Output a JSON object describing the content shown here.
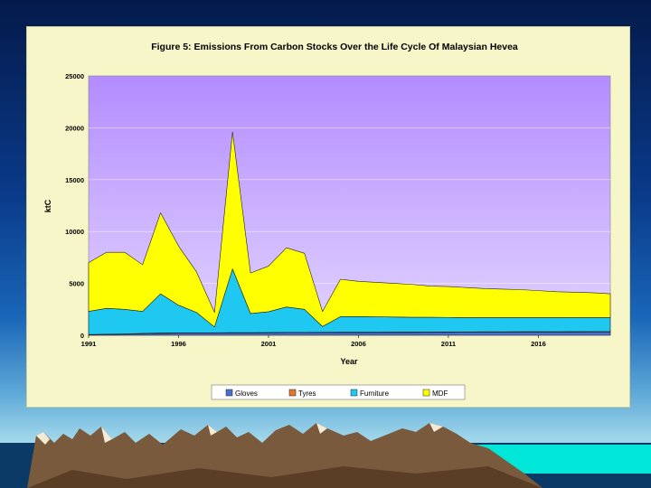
{
  "chart_data": {
    "type": "area",
    "stacked": true,
    "title": "Figure 5: Emissions From Carbon Stocks Over the Life Cycle Of Malaysian Hevea",
    "xlabel": "Year",
    "ylabel": "ktC",
    "x": [
      1991,
      1992,
      1993,
      1994,
      1995,
      1996,
      1997,
      1998,
      1999,
      2000,
      2001,
      2002,
      2003,
      2004,
      2005,
      2006,
      2007,
      2008,
      2009,
      2010,
      2011,
      2012,
      2013,
      2014,
      2015,
      2016,
      2017,
      2018,
      2019,
      2020
    ],
    "xticks": [
      1991,
      1996,
      2001,
      2006,
      2011,
      2016
    ],
    "ylim": [
      0,
      25000
    ],
    "yticks": [
      0,
      5000,
      10000,
      15000,
      20000,
      25000
    ],
    "grid": true,
    "legend_position": "bottom",
    "series": [
      {
        "name": "Gloves",
        "color": "#4a6fd0",
        "values": [
          50,
          80,
          100,
          150,
          180,
          200,
          200,
          200,
          220,
          220,
          230,
          240,
          240,
          250,
          260,
          260,
          265,
          270,
          270,
          275,
          280,
          285,
          290,
          295,
          300,
          300,
          305,
          310,
          315,
          320
        ]
      },
      {
        "name": "Tyres",
        "color": "#e07a2a",
        "values": [
          20,
          25,
          30,
          35,
          40,
          40,
          40,
          40,
          40,
          40,
          40,
          40,
          40,
          40,
          40,
          40,
          40,
          40,
          40,
          40,
          40,
          40,
          40,
          40,
          40,
          40,
          40,
          40,
          40,
          40
        ]
      },
      {
        "name": "Furniture",
        "color": "#1ec8f0",
        "values": [
          2230,
          2495,
          2370,
          2115,
          3780,
          2660,
          1960,
          560,
          6140,
          1840,
          2000,
          2450,
          2220,
          560,
          1500,
          1500,
          1475,
          1450,
          1430,
          1425,
          1400,
          1375,
          1370,
          1365,
          1360,
          1360,
          1355,
          1350,
          1345,
          1340
        ]
      },
      {
        "name": "MDF",
        "color": "#ffff00",
        "values": [
          4700,
          5400,
          5500,
          4500,
          7800,
          5700,
          3900,
          1400,
          13200,
          3900,
          4400,
          5700,
          5400,
          1440,
          3600,
          3400,
          3320,
          3240,
          3160,
          3000,
          2980,
          2900,
          2800,
          2750,
          2700,
          2600,
          2500,
          2450,
          2400,
          2300
        ]
      }
    ],
    "colors": {
      "plot_background_top": "#b38cff",
      "plot_background_bottom": "#e2d4ff",
      "panel_background": "#f6f6c8"
    }
  }
}
